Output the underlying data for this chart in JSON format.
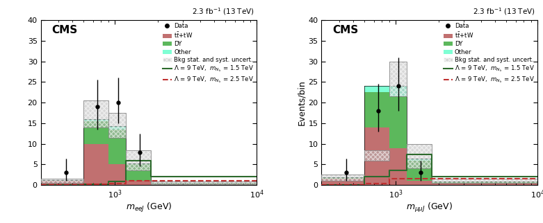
{
  "panel1": {
    "title_left": "CMS",
    "lumi": "2.3 fb$^{-1}$ (13 TeV)",
    "xlabel": "$m_{eeJ}$ (GeV)",
    "ylabel": "",
    "bin_edges": [
      300,
      600,
      900,
      1200,
      1800,
      10000
    ],
    "ttW": [
      1.0,
      10.0,
      5.0,
      1.0,
      0.2
    ],
    "DY": [
      0.1,
      5.5,
      8.5,
      4.0,
      0.3
    ],
    "Other": [
      0.05,
      0.5,
      0.8,
      0.3,
      0.05
    ],
    "bkg_err_lo": [
      0.5,
      14.0,
      11.5,
      3.5,
      0.2
    ],
    "bkg_err_hi": [
      1.5,
      20.5,
      17.5,
      8.5,
      0.8
    ],
    "data_x": [
      450,
      750,
      1050,
      1500
    ],
    "data_y": [
      3,
      19,
      20,
      8
    ],
    "data_yerr_lo": [
      2.0,
      5.5,
      5.0,
      3.5
    ],
    "data_yerr_hi": [
      3.5,
      6.5,
      6.0,
      4.5
    ],
    "sig1_vals": [
      0.05,
      0.2,
      0.8,
      6.0,
      2.0
    ],
    "sig2_vals": [
      0.05,
      0.15,
      0.4,
      1.0,
      1.0
    ],
    "ylim": [
      0,
      40
    ],
    "yticks": [
      0,
      5,
      10,
      15,
      20,
      25,
      30,
      35,
      40
    ]
  },
  "panel2": {
    "title_left": "CMS",
    "lumi": "2.3 fb$^{-1}$ (13 TeV)",
    "xlabel": "$m_{\\mu\\mu J}$ (GeV)",
    "ylabel": "Events/bin",
    "bin_edges": [
      300,
      600,
      900,
      1200,
      1800,
      10000
    ],
    "ttW": [
      1.5,
      14.0,
      9.0,
      1.0,
      0.3
    ],
    "DY": [
      0.3,
      8.5,
      12.5,
      5.0,
      0.5
    ],
    "Other": [
      0.1,
      1.5,
      2.5,
      0.5,
      0.05
    ],
    "bkg_err_lo": [
      1.0,
      6.0,
      21.5,
      4.0,
      0.5
    ],
    "bkg_err_hi": [
      2.5,
      8.5,
      30.0,
      10.0,
      1.5
    ],
    "data_x": [
      450,
      750,
      1050,
      1500
    ],
    "data_y": [
      3,
      18,
      24,
      3
    ],
    "data_yerr_lo": [
      2.0,
      5.0,
      6.0,
      2.0
    ],
    "data_yerr_hi": [
      3.5,
      6.5,
      7.0,
      3.0
    ],
    "sig1_vals": [
      0.05,
      2.0,
      3.5,
      7.5,
      2.0
    ],
    "sig2_vals": [
      0.05,
      0.3,
      1.5,
      1.5,
      1.5
    ],
    "ylim": [
      0,
      40
    ],
    "yticks": [
      0,
      5,
      10,
      15,
      20,
      25,
      30,
      35,
      40
    ]
  },
  "colors": {
    "ttW": "#c17070",
    "DY": "#5cb85c",
    "Other": "#7fffd4",
    "bkg_err": "#b8b8b8",
    "sig1": "#2d6a2d",
    "sig2": "#c03030",
    "data": "black"
  }
}
